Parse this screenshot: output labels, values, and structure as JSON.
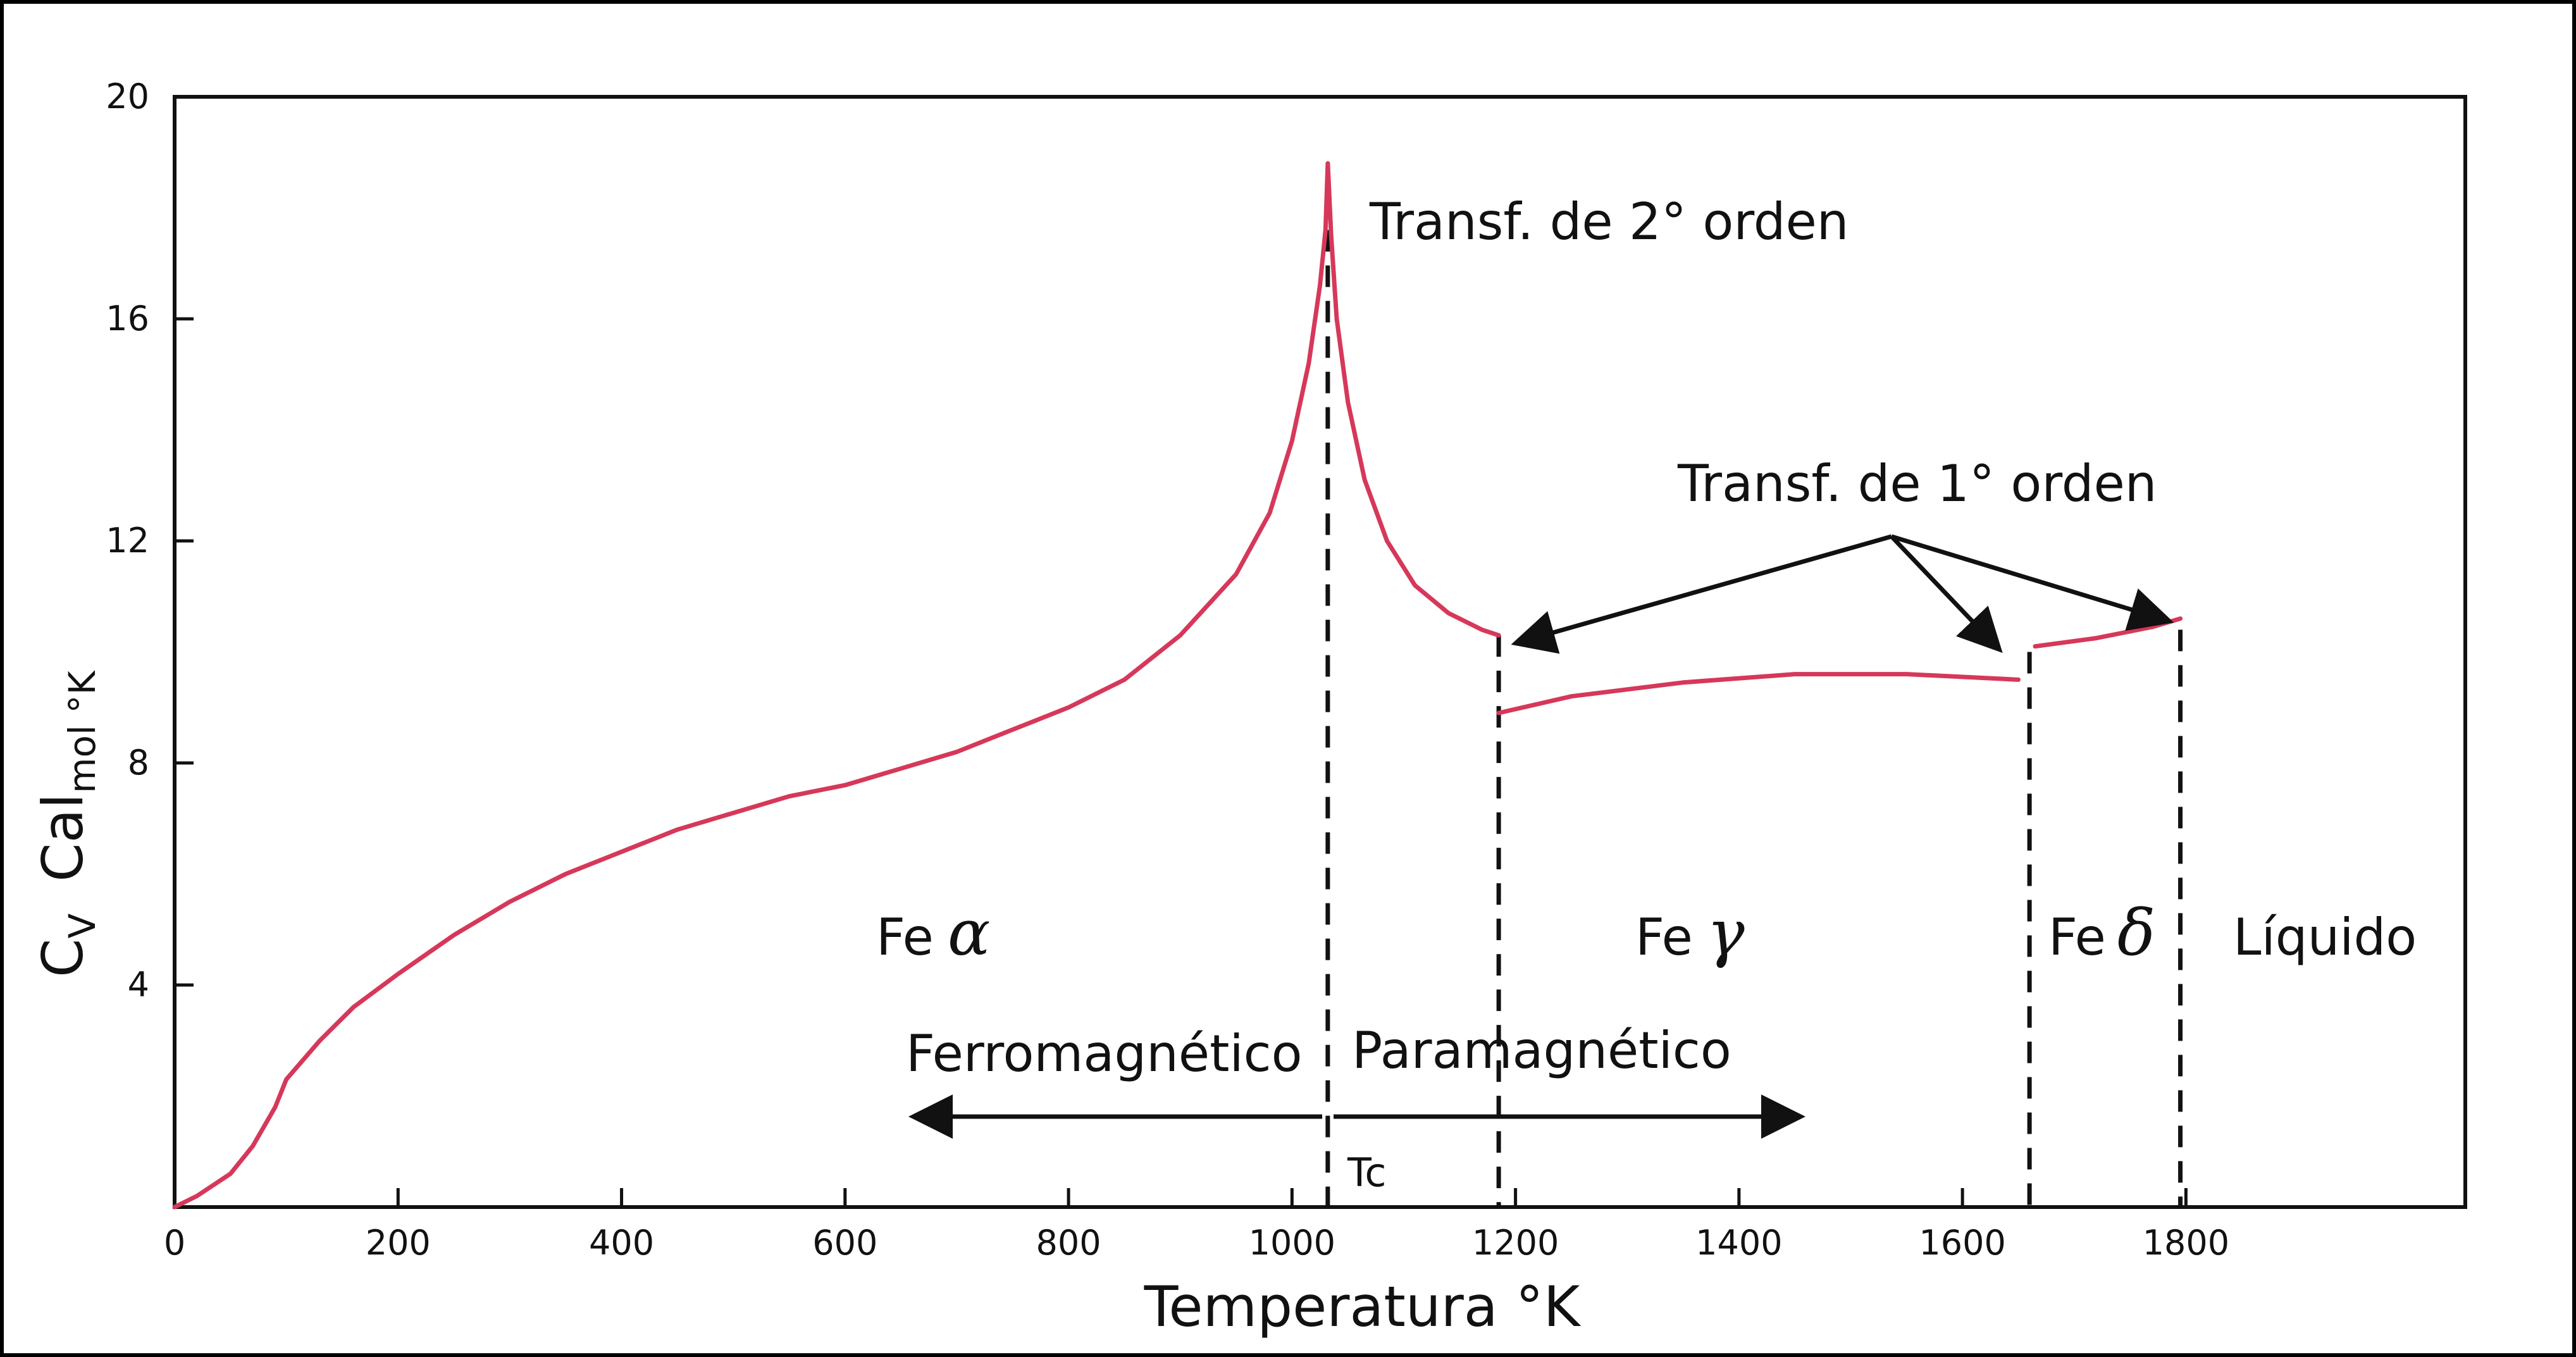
{
  "chart_data": {
    "type": "line",
    "xlabel": "Temperatura °K",
    "ylabel": {
      "main": "C",
      "main_sub": "V",
      "unit": "Cal",
      "unit_sub": "mol °K"
    },
    "xlim": [
      0,
      2050
    ],
    "ylim": [
      0,
      20
    ],
    "x_ticks": [
      0,
      200,
      400,
      600,
      800,
      1000,
      1200,
      1400,
      1600,
      1800
    ],
    "y_ticks": [
      4,
      8,
      12,
      16,
      20
    ],
    "grid": false,
    "line_color": "#d6385a",
    "series": [
      {
        "points": [
          [
            0,
            0.0
          ],
          [
            20,
            0.2
          ],
          [
            50,
            0.6
          ],
          [
            70,
            1.1
          ],
          [
            90,
            1.8
          ],
          [
            100,
            2.3
          ],
          [
            130,
            3.0
          ],
          [
            160,
            3.6
          ],
          [
            200,
            4.2
          ],
          [
            250,
            4.9
          ],
          [
            300,
            5.5
          ],
          [
            350,
            6.0
          ],
          [
            400,
            6.4
          ],
          [
            450,
            6.8
          ],
          [
            500,
            7.1
          ],
          [
            550,
            7.4
          ],
          [
            600,
            7.6
          ],
          [
            650,
            7.9
          ],
          [
            700,
            8.2
          ],
          [
            750,
            8.6
          ],
          [
            800,
            9.0
          ],
          [
            850,
            9.5
          ],
          [
            900,
            10.3
          ],
          [
            950,
            11.4
          ],
          [
            980,
            12.5
          ],
          [
            1000,
            13.8
          ],
          [
            1015,
            15.2
          ],
          [
            1025,
            16.6
          ],
          [
            1030,
            17.6
          ],
          [
            1032,
            18.8
          ]
        ]
      },
      {
        "points": [
          [
            1032,
            18.8
          ],
          [
            1035,
            17.5
          ],
          [
            1040,
            16.0
          ],
          [
            1050,
            14.5
          ],
          [
            1065,
            13.1
          ],
          [
            1085,
            12.0
          ],
          [
            1110,
            11.2
          ],
          [
            1140,
            10.7
          ],
          [
            1170,
            10.4
          ],
          [
            1185,
            10.3
          ]
        ]
      },
      {
        "points": [
          [
            1185,
            8.9
          ],
          [
            1250,
            9.2
          ],
          [
            1350,
            9.45
          ],
          [
            1450,
            9.6
          ],
          [
            1550,
            9.6
          ],
          [
            1650,
            9.5
          ]
        ]
      },
      {
        "points": [
          [
            1665,
            10.1
          ],
          [
            1720,
            10.25
          ],
          [
            1770,
            10.45
          ],
          [
            1795,
            10.6
          ]
        ]
      }
    ],
    "transitions": [
      {
        "x": 1032,
        "y_top": 17.6,
        "label": "Tc"
      },
      {
        "x": 1185,
        "y_top": 10.3
      },
      {
        "x": 1660,
        "y_top": 10.0
      },
      {
        "x": 1795,
        "y_top": 10.4
      }
    ],
    "annotations": {
      "second_order": "Transf. de 2° orden",
      "first_order": "Transf. de 1° orden",
      "phase_alpha": "Fe",
      "phase_alpha_symbol": "α",
      "phase_gamma": "Fe",
      "phase_gamma_symbol": "γ",
      "phase_delta": "Fe",
      "phase_delta_symbol": "δ",
      "liquid": "Líquido",
      "ferro": "Ferromagnético",
      "para": "Paramagnético",
      "tc": "Tc"
    }
  }
}
